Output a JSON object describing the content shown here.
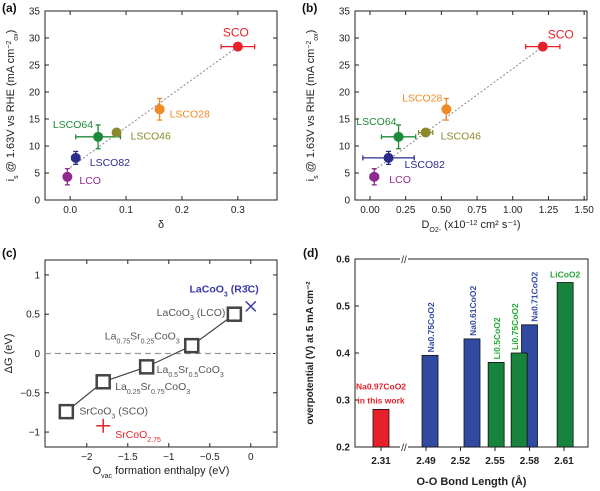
{
  "chart_data": [
    {
      "panel": "(a)",
      "type": "scatter",
      "xlabel": "δ",
      "ylabel": {
        "main": "i",
        "sub": "s",
        "rest": " @ 1.63V vs RHE (mA cm",
        "sup": "−2",
        "sub2": "ox",
        "end": ")"
      },
      "xlim": [
        -0.045,
        0.37
      ],
      "ylim": [
        0,
        35
      ],
      "xticks": [
        "0.0",
        "0.1",
        "0.2",
        "0.3"
      ],
      "xtick_values": [
        0,
        0.1,
        0.2,
        0.3
      ],
      "yticks": [
        "0",
        "5",
        "10",
        "15",
        "20",
        "25",
        "30",
        "35"
      ],
      "ytick_values": [
        0,
        5,
        10,
        15,
        20,
        25,
        30,
        35
      ],
      "fit_line": [
        [
          0.0,
          6.0
        ],
        [
          0.3,
          28.4
        ]
      ],
      "points": [
        {
          "label": "LCO",
          "x": -0.005,
          "y": 4.3,
          "xerr": 0.004,
          "yerr": 1.5,
          "color": "#8e2a8e"
        },
        {
          "label": "LSCO82",
          "x": 0.01,
          "y": 7.8,
          "xerr": 0.007,
          "yerr": 1.2,
          "color": "#2b2b8c"
        },
        {
          "label": "LSCO64",
          "x": 0.05,
          "y": 11.7,
          "xerr": 0.04,
          "yerr": 2.2,
          "color": "#1e8a3c"
        },
        {
          "label": "LSCO46",
          "x": 0.083,
          "y": 12.5,
          "xerr": 0.005,
          "yerr": 0.5,
          "color": "#8a8a2c"
        },
        {
          "label": "LSCO28",
          "x": 0.16,
          "y": 16.8,
          "xerr": 0.007,
          "yerr": 2.0,
          "color": "#f08a24"
        },
        {
          "label": "SCO",
          "x": 0.3,
          "y": 28.4,
          "xerr": 0.03,
          "yerr": 0.7,
          "color": "#e8202a"
        }
      ]
    },
    {
      "panel": "(b)",
      "type": "scatter",
      "xlabel": {
        "main": "D",
        "sub": "O2-",
        "rest": " (x10",
        "sup": "−12",
        "end": " cm² s⁻¹)"
      },
      "ylabel": {
        "main": "i",
        "sub": "s",
        "rest": " @ 1.63V vs RHE (mA cm",
        "sup": "−2",
        "sub2": "ox",
        "end": ")"
      },
      "xlim": [
        -0.105,
        1.52
      ],
      "ylim": [
        0,
        35
      ],
      "xticks": [
        "0.00",
        "0.25",
        "0.50",
        "0.75",
        "1.00",
        "1.25",
        "1.50"
      ],
      "xtick_values": [
        0,
        0.25,
        0.5,
        0.75,
        1.0,
        1.25,
        1.5
      ],
      "yticks": [
        "0",
        "5",
        "10",
        "15",
        "20",
        "25",
        "30",
        "35"
      ],
      "ytick_values": [
        0,
        5,
        10,
        15,
        20,
        25,
        30,
        35
      ],
      "fit_line": [
        [
          0.03,
          5.5
        ],
        [
          1.21,
          28.4
        ]
      ],
      "points": [
        {
          "label": "LCO",
          "x": 0.03,
          "y": 4.3,
          "xerr": 0.03,
          "yerr": 1.5,
          "color": "#8e2a8e"
        },
        {
          "label": "LSCO82",
          "x": 0.13,
          "y": 7.8,
          "xerr": 0.18,
          "yerr": 1.2,
          "color": "#2b2b8c"
        },
        {
          "label": "LSCO64",
          "x": 0.2,
          "y": 11.7,
          "xerr": 0.12,
          "yerr": 2.2,
          "color": "#1e8a3c"
        },
        {
          "label": "LSCO46",
          "x": 0.39,
          "y": 12.5,
          "xerr": 0.05,
          "yerr": 0.5,
          "color": "#8a8a2c"
        },
        {
          "label": "LSCO28",
          "x": 0.535,
          "y": 16.8,
          "xerr": 0.02,
          "yerr": 2.0,
          "color": "#f08a24"
        },
        {
          "label": "SCO",
          "x": 1.21,
          "y": 28.4,
          "xerr": 0.12,
          "yerr": 0.7,
          "color": "#e8202a"
        }
      ]
    },
    {
      "panel": "(c)",
      "type": "line",
      "xlabel": {
        "main": "O",
        "sub": "vac",
        "rest": " formation enthalpy (eV)"
      },
      "ylabel": "ΔG (eV)",
      "xlim": [
        -2.51,
        0.32
      ],
      "ylim": [
        -1.19,
        1.19
      ],
      "xticks": [
        "−2",
        "−1.5",
        "−1",
        "−0.5",
        "0"
      ],
      "xtick_values": [
        -2,
        -1.5,
        -1,
        -0.5,
        0
      ],
      "yticks": [
        "−1",
        "−0.5",
        "0",
        "0.5",
        "1"
      ],
      "ytick_values": [
        -1,
        -0.5,
        0,
        0.5,
        1
      ],
      "reference_line_y": 0,
      "series_color": "#444444",
      "points": [
        {
          "x": -2.25,
          "y": -0.74,
          "label": [
            [
              "SrCoO",
              ""
            ],
            [
              "3",
              "sub"
            ],
            [
              " (SCO)",
              ""
            ]
          ]
        },
        {
          "x": -1.8,
          "y": -0.36,
          "label": [
            [
              "La",
              ""
            ],
            [
              "0.25",
              "sub"
            ],
            [
              "Sr",
              ""
            ],
            [
              "0.75",
              "sub"
            ],
            [
              "CoO",
              ""
            ],
            [
              "3",
              "sub"
            ]
          ]
        },
        {
          "x": -1.27,
          "y": -0.17,
          "label": [
            [
              "La",
              ""
            ],
            [
              "0.5",
              "sub"
            ],
            [
              "Sr",
              ""
            ],
            [
              "0.5",
              "sub"
            ],
            [
              "CoO",
              ""
            ],
            [
              "3",
              "sub"
            ]
          ]
        },
        {
          "x": -0.72,
          "y": 0.1,
          "label": [
            [
              "La",
              ""
            ],
            [
              "0.75",
              "sub"
            ],
            [
              "Sr",
              ""
            ],
            [
              "0.25",
              "sub"
            ],
            [
              "CoO",
              ""
            ],
            [
              "3",
              "sub"
            ]
          ]
        },
        {
          "x": -0.2,
          "y": 0.5,
          "label": [
            [
              "LaCoO",
              ""
            ],
            [
              "3",
              "sub"
            ],
            [
              " (LCO)",
              ""
            ]
          ]
        }
      ],
      "extra_points": [
        {
          "x": 0,
          "y": 0.6,
          "marker": "x",
          "color": "#3a3aa8",
          "label": [
            [
              "LaCoO",
              ""
            ],
            [
              "3",
              "sub"
            ],
            [
              " (R",
              ""
            ],
            [
              "3̄",
              ""
            ],
            [
              "C)",
              ""
            ]
          ]
        },
        {
          "x": -1.8,
          "y": -0.92,
          "marker": "+",
          "color": "#e8202a",
          "label": [
            [
              "SrCoO",
              ""
            ],
            [
              "2.75",
              "sub"
            ]
          ]
        }
      ]
    },
    {
      "panel": "(d)",
      "type": "bar",
      "xlabel": "O-O Bond Length (Å)",
      "ylabel": "overpotential (V) at 5 mA cm⁻²",
      "ylim": [
        0.2,
        0.6
      ],
      "yticks": [
        "0.2",
        "0.3",
        "0.4",
        "0.5",
        "0.6"
      ],
      "ytick_values": [
        0.2,
        0.3,
        0.4,
        0.5,
        0.6
      ],
      "xticks": [
        "2.31",
        "2.49",
        "2.52",
        "2.55",
        "2.58",
        "2.61"
      ],
      "xtick_values": [
        2.31,
        2.49,
        2.52,
        2.55,
        2.58,
        2.61
      ],
      "axis_break": "//",
      "bars": [
        {
          "x": 2.31,
          "value": 0.28,
          "color": "#e8202a",
          "label": [
            "Na0.97CoO2",
            "in this work"
          ]
        },
        {
          "x": 2.4935,
          "value": 0.395,
          "color": "#2f4aa0",
          "label": [
            "Na0.75CoO2"
          ]
        },
        {
          "x": 2.53,
          "value": 0.43,
          "color": "#2f4aa0",
          "label": [
            "Na0.61CoO2"
          ]
        },
        {
          "x": 2.58,
          "value": 0.46,
          "color": "#2f4aa0",
          "label": [
            "Na0.71CoO2"
          ]
        },
        {
          "x": 2.551,
          "value": 0.38,
          "color": "#16843c",
          "label": [
            "Li0.5CoO2"
          ]
        },
        {
          "x": 2.571,
          "value": 0.4,
          "color": "#16843c",
          "label": [
            "Li0.75CoO2"
          ]
        },
        {
          "x": 2.611,
          "value": 0.55,
          "color": "#16843c",
          "label": [
            "LiCoO2"
          ]
        }
      ]
    }
  ]
}
